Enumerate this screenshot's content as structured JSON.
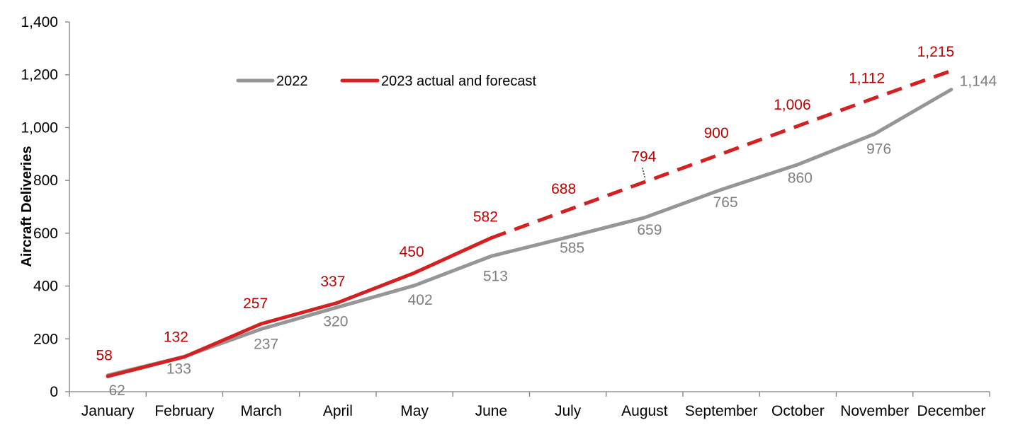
{
  "chart_data": {
    "type": "line",
    "title": "",
    "xlabel": "",
    "ylabel": "Aircraft Deliveries",
    "ylim": [
      0,
      1400
    ],
    "yticks": [
      "0",
      "200",
      "400",
      "600",
      "800",
      "1,000",
      "1,200",
      "1,400"
    ],
    "categories": [
      "January",
      "February",
      "March",
      "April",
      "May",
      "June",
      "July",
      "August",
      "September",
      "October",
      "November",
      "December"
    ],
    "legend_position": "top-left",
    "grid": false,
    "series": [
      {
        "name": "2022",
        "color": "#969696",
        "label_color": "#7f7f7f",
        "style": "solid",
        "values": [
          62,
          133,
          237,
          320,
          402,
          513,
          585,
          659,
          765,
          860,
          976,
          1144
        ],
        "labels": [
          "62",
          "133",
          "237",
          "320",
          "402",
          "513",
          "585",
          "659",
          "765",
          "860",
          "976",
          "1,144"
        ]
      },
      {
        "name": "2023 actual and forecast",
        "color": "#d42020",
        "label_color": "#c00000",
        "style": "solid-then-dashed",
        "actual_through": "June",
        "values": [
          58,
          132,
          257,
          337,
          450,
          582,
          688,
          794,
          900,
          1006,
          1112,
          1215
        ],
        "labels": [
          "58",
          "132",
          "257",
          "337",
          "450",
          "582",
          "688",
          "794",
          "900",
          "1,006",
          "1,112",
          "1,215"
        ]
      }
    ]
  }
}
